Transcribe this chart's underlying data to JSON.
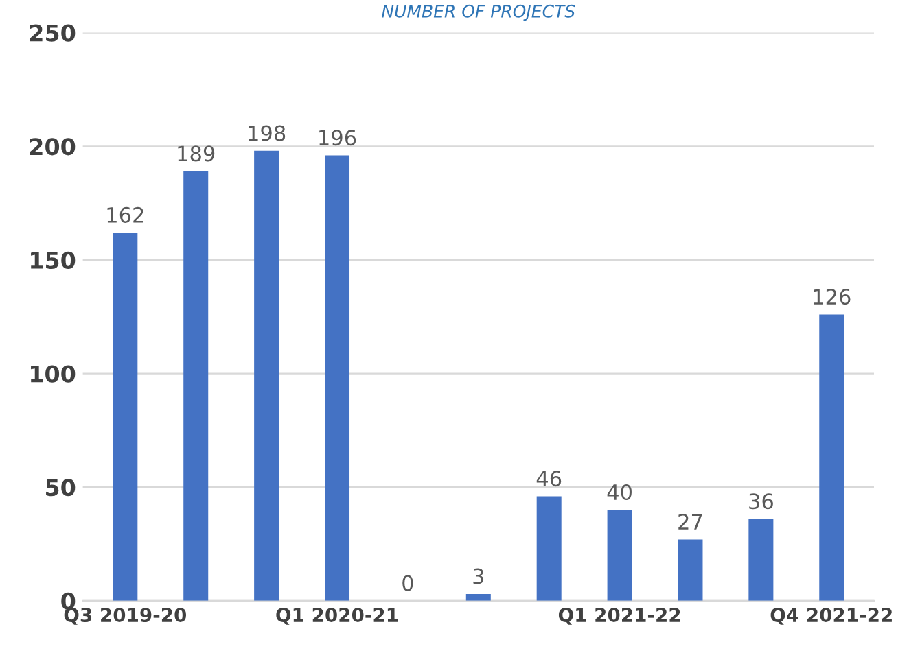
{
  "chart_data": {
    "type": "bar",
    "title": "NUMBER OF PROJECTS",
    "categories": [
      "Q3 2019-20",
      null,
      null,
      "Q1 2020-21",
      null,
      null,
      null,
      "Q1 2021-22",
      null,
      null,
      "Q4 2021-22"
    ],
    "values": [
      162,
      189,
      198,
      196,
      0,
      3,
      46,
      40,
      27,
      36,
      126
    ],
    "color": "#4472c4",
    "ylim": [
      0,
      250
    ],
    "yticks": [
      0,
      50,
      100,
      150,
      200,
      250
    ],
    "grid": "y",
    "data_labels": true
  }
}
